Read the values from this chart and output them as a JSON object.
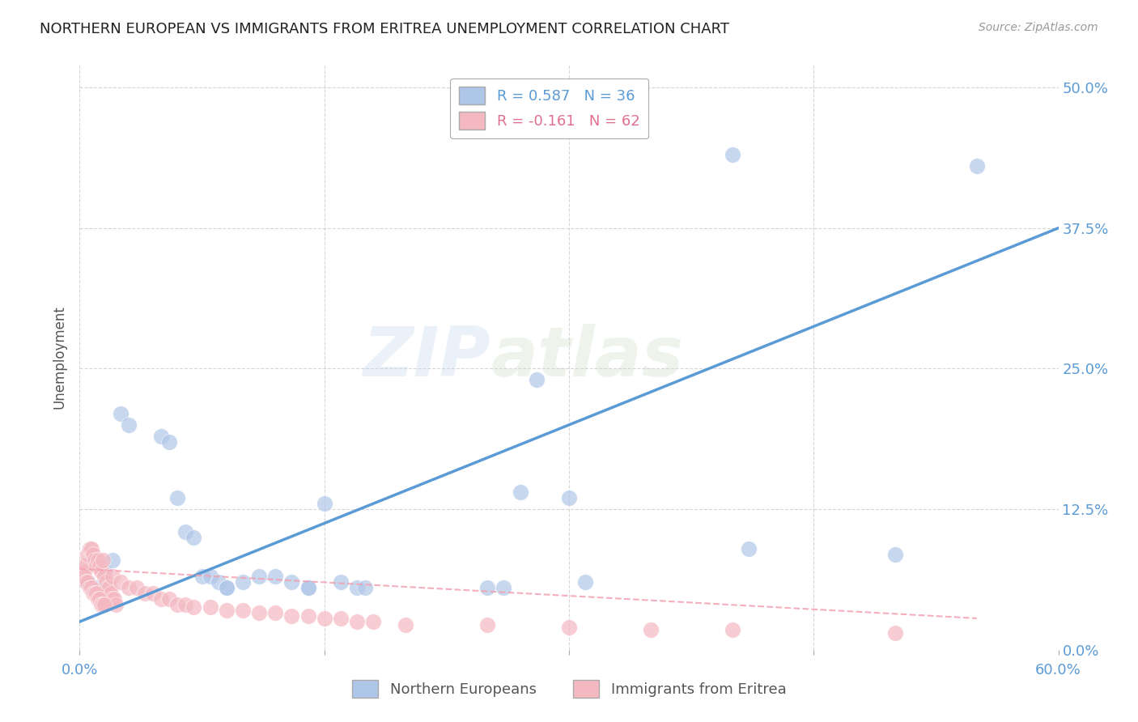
{
  "title": "NORTHERN EUROPEAN VS IMMIGRANTS FROM ERITREA UNEMPLOYMENT CORRELATION CHART",
  "source": "Source: ZipAtlas.com",
  "ylabel": "Unemployment",
  "ytick_labels": [
    "0.0%",
    "12.5%",
    "25.0%",
    "37.5%",
    "50.0%"
  ],
  "ytick_values": [
    0.0,
    0.125,
    0.25,
    0.375,
    0.5
  ],
  "xlim": [
    0.0,
    0.6
  ],
  "ylim": [
    0.0,
    0.52
  ],
  "blue_scatter": [
    [
      0.005,
      0.06
    ],
    [
      0.01,
      0.055
    ],
    [
      0.015,
      0.07
    ],
    [
      0.02,
      0.08
    ],
    [
      0.025,
      0.21
    ],
    [
      0.03,
      0.2
    ],
    [
      0.05,
      0.19
    ],
    [
      0.055,
      0.185
    ],
    [
      0.06,
      0.135
    ],
    [
      0.065,
      0.105
    ],
    [
      0.07,
      0.1
    ],
    [
      0.075,
      0.065
    ],
    [
      0.08,
      0.065
    ],
    [
      0.085,
      0.06
    ],
    [
      0.09,
      0.055
    ],
    [
      0.1,
      0.06
    ],
    [
      0.11,
      0.065
    ],
    [
      0.12,
      0.065
    ],
    [
      0.13,
      0.06
    ],
    [
      0.14,
      0.055
    ],
    [
      0.15,
      0.13
    ],
    [
      0.16,
      0.06
    ],
    [
      0.17,
      0.055
    ],
    [
      0.175,
      0.055
    ],
    [
      0.25,
      0.055
    ],
    [
      0.26,
      0.055
    ],
    [
      0.27,
      0.14
    ],
    [
      0.28,
      0.24
    ],
    [
      0.3,
      0.135
    ],
    [
      0.31,
      0.06
    ],
    [
      0.4,
      0.44
    ],
    [
      0.41,
      0.09
    ],
    [
      0.5,
      0.085
    ],
    [
      0.55,
      0.43
    ],
    [
      0.14,
      0.055
    ],
    [
      0.09,
      0.055
    ]
  ],
  "pink_scatter": [
    [
      0.002,
      0.075
    ],
    [
      0.003,
      0.07
    ],
    [
      0.004,
      0.075
    ],
    [
      0.005,
      0.085
    ],
    [
      0.006,
      0.09
    ],
    [
      0.007,
      0.09
    ],
    [
      0.008,
      0.085
    ],
    [
      0.009,
      0.08
    ],
    [
      0.01,
      0.075
    ],
    [
      0.011,
      0.08
    ],
    [
      0.012,
      0.075
    ],
    [
      0.013,
      0.07
    ],
    [
      0.014,
      0.08
    ],
    [
      0.015,
      0.065
    ],
    [
      0.016,
      0.06
    ],
    [
      0.017,
      0.055
    ],
    [
      0.018,
      0.055
    ],
    [
      0.019,
      0.05
    ],
    [
      0.02,
      0.045
    ],
    [
      0.021,
      0.045
    ],
    [
      0.022,
      0.04
    ],
    [
      0.003,
      0.065
    ],
    [
      0.004,
      0.06
    ],
    [
      0.005,
      0.06
    ],
    [
      0.006,
      0.055
    ],
    [
      0.007,
      0.055
    ],
    [
      0.008,
      0.05
    ],
    [
      0.009,
      0.05
    ],
    [
      0.01,
      0.05
    ],
    [
      0.011,
      0.045
    ],
    [
      0.012,
      0.045
    ],
    [
      0.013,
      0.04
    ],
    [
      0.014,
      0.04
    ],
    [
      0.015,
      0.04
    ],
    [
      0.02,
      0.065
    ],
    [
      0.025,
      0.06
    ],
    [
      0.03,
      0.055
    ],
    [
      0.035,
      0.055
    ],
    [
      0.04,
      0.05
    ],
    [
      0.045,
      0.05
    ],
    [
      0.05,
      0.045
    ],
    [
      0.055,
      0.045
    ],
    [
      0.06,
      0.04
    ],
    [
      0.065,
      0.04
    ],
    [
      0.07,
      0.038
    ],
    [
      0.08,
      0.038
    ],
    [
      0.09,
      0.035
    ],
    [
      0.1,
      0.035
    ],
    [
      0.11,
      0.033
    ],
    [
      0.12,
      0.033
    ],
    [
      0.13,
      0.03
    ],
    [
      0.14,
      0.03
    ],
    [
      0.15,
      0.028
    ],
    [
      0.16,
      0.028
    ],
    [
      0.17,
      0.025
    ],
    [
      0.18,
      0.025
    ],
    [
      0.2,
      0.022
    ],
    [
      0.25,
      0.022
    ],
    [
      0.3,
      0.02
    ],
    [
      0.35,
      0.018
    ],
    [
      0.4,
      0.018
    ],
    [
      0.5,
      0.015
    ]
  ],
  "blue_line": {
    "x0": 0.0,
    "y0": 0.025,
    "x1": 0.6,
    "y1": 0.375
  },
  "pink_line": {
    "x0": 0.0,
    "y0": 0.072,
    "x1": 0.55,
    "y1": 0.028
  },
  "blue_color": "#aec6e8",
  "pink_color": "#f4b8c1",
  "blue_line_color": "#5b9bd5",
  "pink_line_color": "#f4a0b0",
  "watermark_zip": "ZIP",
  "watermark_atlas": "atlas",
  "background_color": "#ffffff",
  "grid_color": "#cccccc",
  "legend_upper": [
    {
      "label": "R = 0.587   N = 36",
      "facecolor": "#aec6e8"
    },
    {
      "label": "R = -0.161   N = 62",
      "facecolor": "#f4b8c1"
    }
  ],
  "legend_upper_text_colors": [
    "#5b9bd5",
    "#e07090"
  ],
  "legend_bottom": [
    "Northern Europeans",
    "Immigrants from Eritrea"
  ],
  "legend_bottom_colors": [
    "#aec6e8",
    "#f4b8c1"
  ]
}
